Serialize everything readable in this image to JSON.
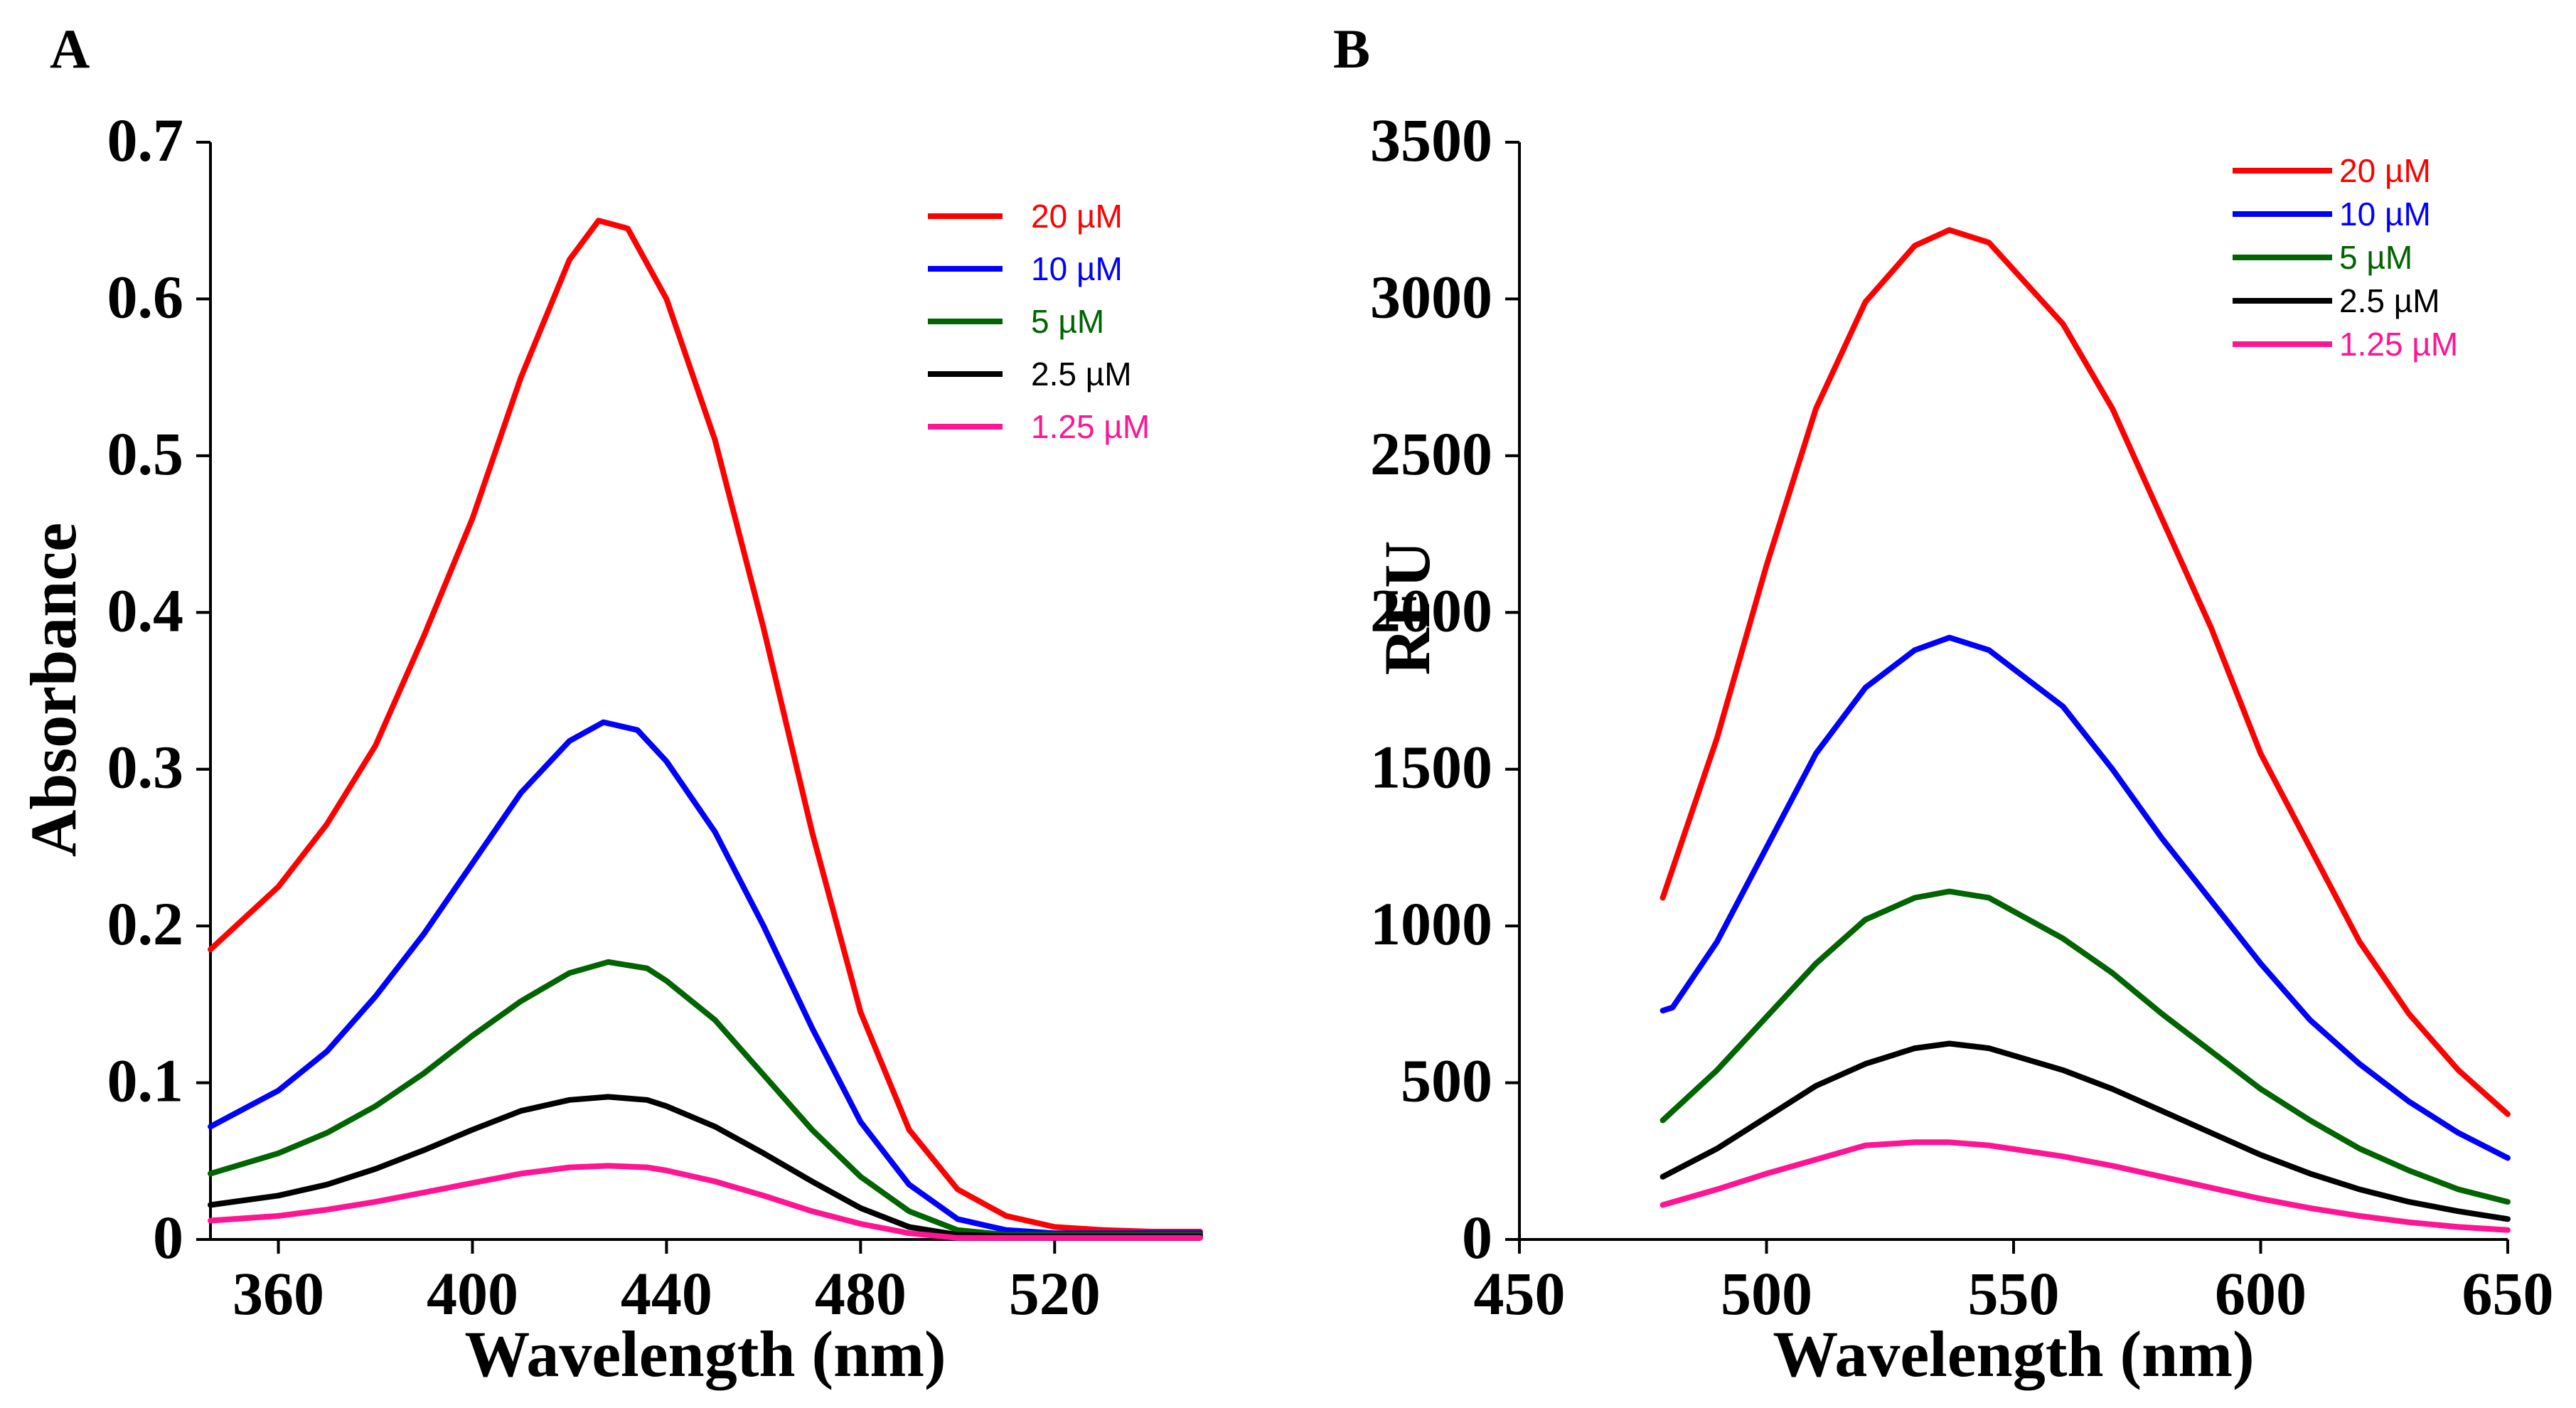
{
  "chart_data": [
    {
      "type": "line",
      "panel_label": "A",
      "xlabel": "Wavelength (nm)",
      "ylabel": "Absorbance",
      "xlim": [
        346,
        550
      ],
      "ylim": [
        0,
        0.7
      ],
      "xticks": [
        360,
        400,
        440,
        480,
        520
      ],
      "yticks": [
        0,
        0.1,
        0.2,
        0.3,
        0.4,
        0.5,
        0.6,
        0.7
      ],
      "ytick_labels": [
        "0",
        "0.1",
        "0.2",
        "0.3",
        "0.4",
        "0.5",
        "0.6",
        "0.7"
      ],
      "grid": false,
      "legend_position": "top-right",
      "series": [
        {
          "name": "20 µM",
          "color": "#ff0000",
          "x": [
            346,
            360,
            370,
            380,
            390,
            400,
            410,
            420,
            426,
            432,
            440,
            450,
            460,
            470,
            480,
            490,
            500,
            510,
            520,
            530,
            540,
            550
          ],
          "y": [
            0.185,
            0.225,
            0.265,
            0.315,
            0.385,
            0.46,
            0.55,
            0.625,
            0.65,
            0.645,
            0.6,
            0.51,
            0.39,
            0.26,
            0.145,
            0.07,
            0.032,
            0.015,
            0.008,
            0.006,
            0.005,
            0.005
          ]
        },
        {
          "name": "10 µM",
          "color": "#0000ff",
          "x": [
            346,
            360,
            370,
            380,
            390,
            400,
            410,
            420,
            427,
            434,
            440,
            450,
            460,
            470,
            480,
            490,
            500,
            510,
            520,
            530,
            550
          ],
          "y": [
            0.072,
            0.095,
            0.12,
            0.155,
            0.195,
            0.24,
            0.285,
            0.318,
            0.33,
            0.325,
            0.305,
            0.26,
            0.2,
            0.135,
            0.075,
            0.035,
            0.013,
            0.006,
            0.004,
            0.004,
            0.004
          ]
        },
        {
          "name": "5 µM",
          "color": "#006400",
          "x": [
            346,
            360,
            370,
            380,
            390,
            400,
            410,
            420,
            428,
            436,
            440,
            450,
            460,
            470,
            480,
            490,
            500,
            510,
            520,
            550
          ],
          "y": [
            0.042,
            0.055,
            0.068,
            0.085,
            0.106,
            0.13,
            0.152,
            0.17,
            0.177,
            0.173,
            0.165,
            0.14,
            0.105,
            0.07,
            0.04,
            0.018,
            0.006,
            0.003,
            0.003,
            0.003
          ]
        },
        {
          "name": "2.5 µM",
          "color": "#000000",
          "x": [
            346,
            360,
            370,
            380,
            390,
            400,
            410,
            420,
            428,
            436,
            440,
            450,
            460,
            470,
            480,
            490,
            500,
            510,
            550
          ],
          "y": [
            0.022,
            0.028,
            0.035,
            0.045,
            0.057,
            0.07,
            0.082,
            0.089,
            0.091,
            0.089,
            0.085,
            0.072,
            0.055,
            0.037,
            0.02,
            0.008,
            0.003,
            0.002,
            0.002
          ]
        },
        {
          "name": "1.25 µM",
          "color": "#ff1493",
          "x": [
            346,
            360,
            370,
            380,
            390,
            400,
            410,
            420,
            428,
            436,
            440,
            450,
            460,
            470,
            480,
            490,
            500,
            510,
            550
          ],
          "y": [
            0.012,
            0.015,
            0.019,
            0.024,
            0.03,
            0.036,
            0.042,
            0.046,
            0.047,
            0.046,
            0.044,
            0.037,
            0.028,
            0.018,
            0.01,
            0.004,
            0.001,
            0.001,
            0.001
          ]
        }
      ]
    },
    {
      "type": "line",
      "panel_label": "B",
      "xlabel": "Wavelength (nm)",
      "ylabel": "RFU",
      "xlim": [
        450,
        650
      ],
      "ylim": [
        0,
        3500
      ],
      "xticks": [
        450,
        500,
        550,
        600,
        650
      ],
      "yticks": [
        0,
        500,
        1000,
        1500,
        2000,
        2500,
        3000,
        3500
      ],
      "grid": false,
      "legend_position": "top-right",
      "series": [
        {
          "name": "20 µM",
          "color": "#ff0000",
          "x": [
            479,
            490,
            500,
            510,
            520,
            530,
            537,
            545,
            560,
            570,
            580,
            590,
            600,
            610,
            620,
            630,
            640,
            650
          ],
          "y": [
            1090,
            1600,
            2150,
            2650,
            2990,
            3170,
            3220,
            3180,
            2920,
            2650,
            2300,
            1950,
            1550,
            1250,
            950,
            720,
            540,
            400
          ]
        },
        {
          "name": "10 µM",
          "color": "#0000ff",
          "x": [
            479,
            481,
            490,
            500,
            510,
            520,
            530,
            537,
            545,
            560,
            570,
            580,
            590,
            600,
            610,
            620,
            630,
            640,
            650
          ],
          "y": [
            730,
            740,
            950,
            1250,
            1550,
            1760,
            1880,
            1920,
            1880,
            1700,
            1500,
            1280,
            1080,
            880,
            700,
            560,
            440,
            340,
            260
          ]
        },
        {
          "name": "5 µM",
          "color": "#006400",
          "x": [
            479,
            490,
            500,
            510,
            520,
            530,
            537,
            545,
            560,
            570,
            580,
            590,
            600,
            610,
            620,
            630,
            640,
            650
          ],
          "y": [
            380,
            540,
            710,
            880,
            1020,
            1090,
            1110,
            1090,
            960,
            850,
            720,
            600,
            480,
            380,
            290,
            220,
            160,
            120
          ]
        },
        {
          "name": "2.5 µM",
          "color": "#000000",
          "x": [
            479,
            490,
            500,
            510,
            520,
            530,
            537,
            545,
            560,
            570,
            580,
            590,
            600,
            610,
            620,
            630,
            640,
            650
          ],
          "y": [
            200,
            290,
            390,
            490,
            560,
            610,
            625,
            610,
            540,
            480,
            410,
            340,
            270,
            210,
            160,
            120,
            90,
            65
          ]
        },
        {
          "name": "1.25 µM",
          "color": "#ff1493",
          "x": [
            479,
            490,
            500,
            510,
            520,
            530,
            537,
            545,
            560,
            570,
            580,
            590,
            600,
            610,
            620,
            630,
            640,
            650
          ],
          "y": [
            110,
            160,
            210,
            255,
            300,
            310,
            310,
            300,
            265,
            235,
            200,
            165,
            130,
            100,
            75,
            55,
            40,
            30
          ]
        }
      ]
    }
  ]
}
